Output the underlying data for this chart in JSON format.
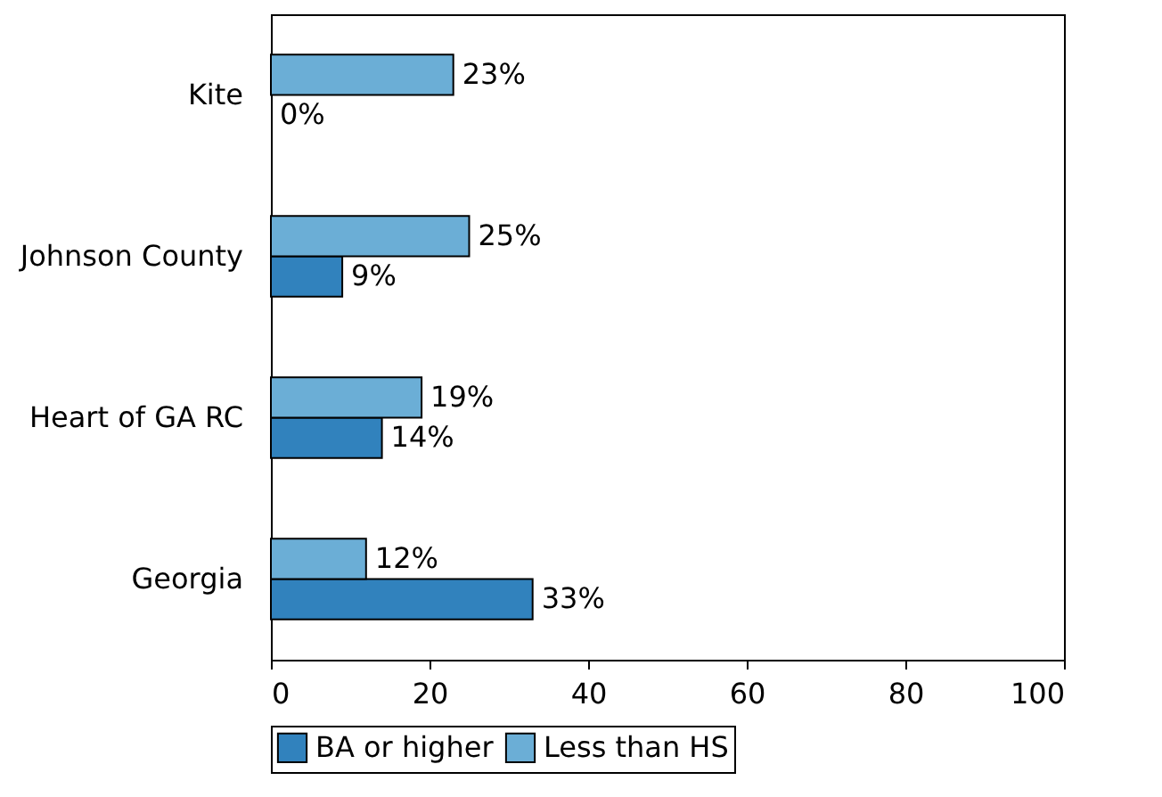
{
  "chart_data": {
    "type": "bar",
    "orientation": "horizontal",
    "categories": [
      "Kite",
      "Johnson County",
      "Heart of GA RC",
      "Georgia"
    ],
    "series": [
      {
        "name": "BA or higher",
        "color": "#3182bd",
        "values": [
          0,
          9,
          14,
          33
        ],
        "value_labels": [
          "0%",
          "9%",
          "14%",
          "33%"
        ]
      },
      {
        "name": "Less than HS",
        "color": "#6baed6",
        "values": [
          23,
          25,
          19,
          12
        ],
        "value_labels": [
          "23%",
          "25%",
          "19%",
          "12%"
        ]
      }
    ],
    "xlim": [
      0,
      100
    ],
    "xticks": [
      0,
      20,
      40,
      60,
      80,
      100
    ],
    "grid": false,
    "legend": "bottom"
  }
}
